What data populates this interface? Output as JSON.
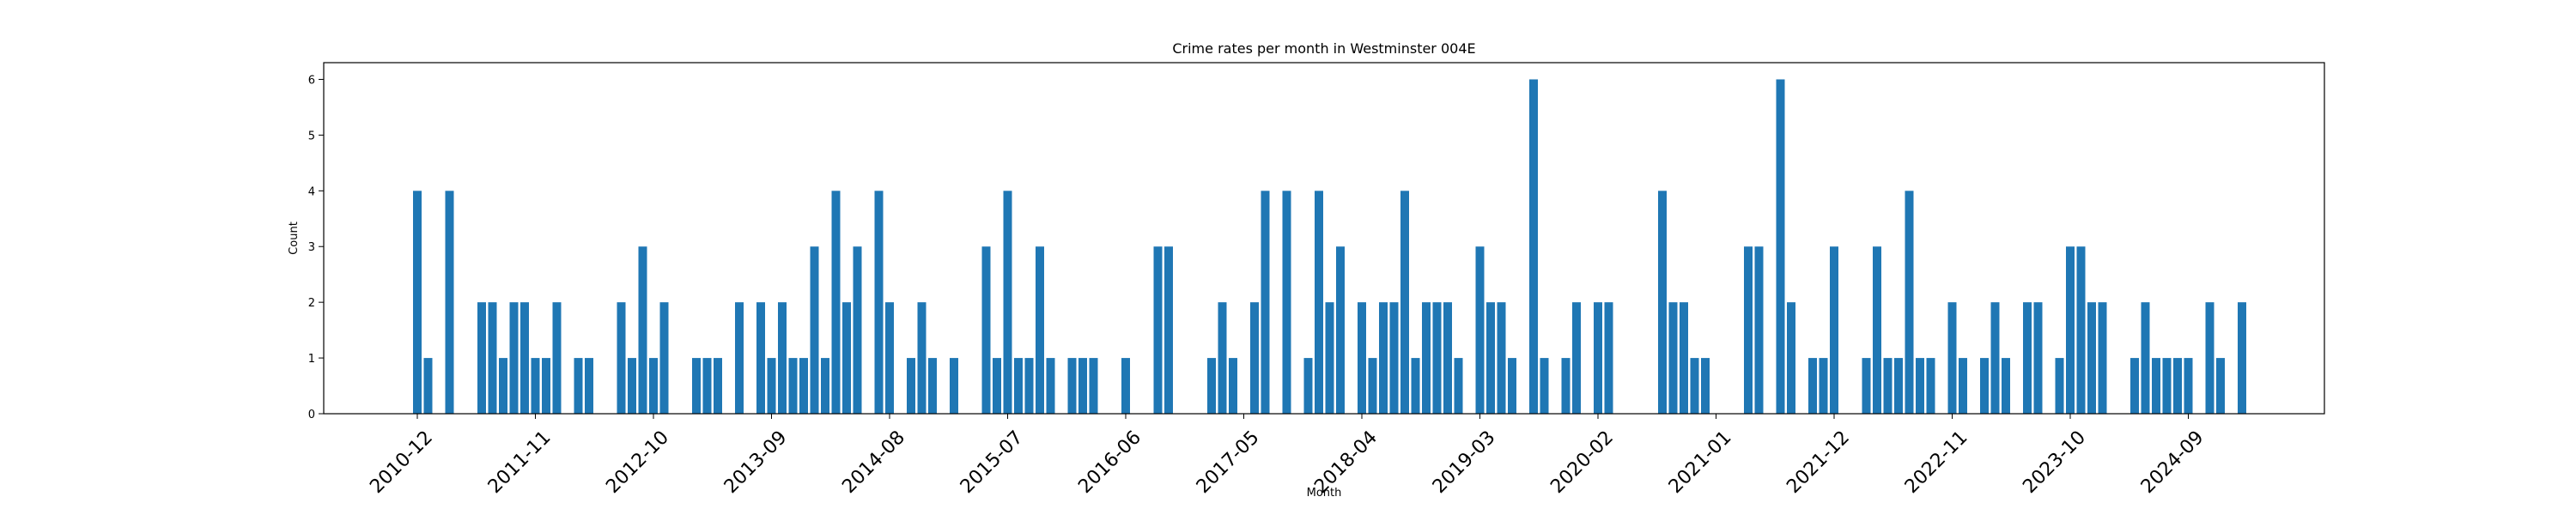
{
  "chart_data": {
    "type": "bar",
    "title": "Crime rates per month in Westminster 004E",
    "xlabel": "Month",
    "ylabel": "Count",
    "ylim": [
      0,
      6.3
    ],
    "y_ticks": [
      0,
      1,
      2,
      3,
      4,
      5,
      6
    ],
    "x_tick_labels": [
      "2010-12",
      "2011-11",
      "2012-10",
      "2013-09",
      "2014-08",
      "2015-07",
      "2016-06",
      "2017-05",
      "2018-04",
      "2019-03",
      "2020-02",
      "2021-01",
      "2021-12",
      "2022-11",
      "2023-10",
      "2024-09"
    ],
    "grid": false,
    "color": "#1f77b4",
    "series": [
      {
        "categories": [
          "2010-12",
          "2011-01",
          "2011-03",
          "2011-06",
          "2011-07",
          "2011-08",
          "2011-09",
          "2011-10",
          "2011-11",
          "2011-12",
          "2012-01",
          "2012-03",
          "2012-04",
          "2012-07",
          "2012-08",
          "2012-09",
          "2012-10",
          "2012-11",
          "2013-02",
          "2013-03",
          "2013-04",
          "2013-06",
          "2013-08",
          "2013-09",
          "2013-10",
          "2013-11",
          "2013-12",
          "2014-01",
          "2014-02",
          "2014-03",
          "2014-04",
          "2014-05",
          "2014-07",
          "2014-08",
          "2014-10",
          "2014-11",
          "2014-12",
          "2015-02",
          "2015-05",
          "2015-06",
          "2015-07",
          "2015-08",
          "2015-09",
          "2015-10",
          "2015-11",
          "2016-01",
          "2016-02",
          "2016-03",
          "2016-06",
          "2016-09",
          "2016-10",
          "2017-02",
          "2017-03",
          "2017-04",
          "2017-06",
          "2017-07",
          "2017-09",
          "2017-11",
          "2017-12",
          "2018-01",
          "2018-02",
          "2018-04",
          "2018-05",
          "2018-06",
          "2018-07",
          "2018-08",
          "2018-09",
          "2018-10",
          "2018-11",
          "2018-12",
          "2019-01",
          "2019-03",
          "2019-04",
          "2019-05",
          "2019-06",
          "2019-08",
          "2019-09",
          "2019-11",
          "2019-12",
          "2020-02",
          "2020-03",
          "2020-08",
          "2020-09",
          "2020-10",
          "2020-11",
          "2020-12",
          "2021-04",
          "2021-05",
          "2021-07",
          "2021-08",
          "2021-10",
          "2021-11",
          "2021-12",
          "2022-03",
          "2022-04",
          "2022-05",
          "2022-06",
          "2022-07",
          "2022-08",
          "2022-09",
          "2022-11",
          "2022-12",
          "2023-02",
          "2023-03",
          "2023-04",
          "2023-06",
          "2023-07",
          "2023-09",
          "2023-10",
          "2023-11",
          "2023-12",
          "2024-01",
          "2024-04",
          "2024-05",
          "2024-06",
          "2024-07",
          "2024-08",
          "2024-09",
          "2024-11",
          "2024-12",
          "2025-02"
        ],
        "values": [
          4,
          1,
          4,
          2,
          2,
          1,
          2,
          2,
          1,
          1,
          2,
          1,
          1,
          2,
          1,
          3,
          1,
          2,
          1,
          1,
          1,
          2,
          2,
          1,
          2,
          1,
          1,
          3,
          1,
          4,
          2,
          3,
          4,
          2,
          1,
          2,
          1,
          1,
          3,
          1,
          4,
          1,
          1,
          3,
          1,
          1,
          1,
          1,
          1,
          3,
          3,
          1,
          2,
          1,
          2,
          4,
          4,
          1,
          4,
          2,
          3,
          2,
          1,
          2,
          2,
          4,
          1,
          2,
          2,
          2,
          1,
          3,
          2,
          2,
          1,
          6,
          1,
          1,
          2,
          2,
          2,
          4,
          2,
          2,
          1,
          1,
          3,
          3,
          6,
          2,
          1,
          1,
          3,
          1,
          3,
          1,
          1,
          4,
          1,
          1,
          2,
          1,
          1,
          2,
          1,
          2,
          2,
          1,
          3,
          3,
          2,
          2,
          1,
          2,
          1,
          1,
          1,
          1,
          2,
          1,
          2
        ]
      }
    ]
  }
}
